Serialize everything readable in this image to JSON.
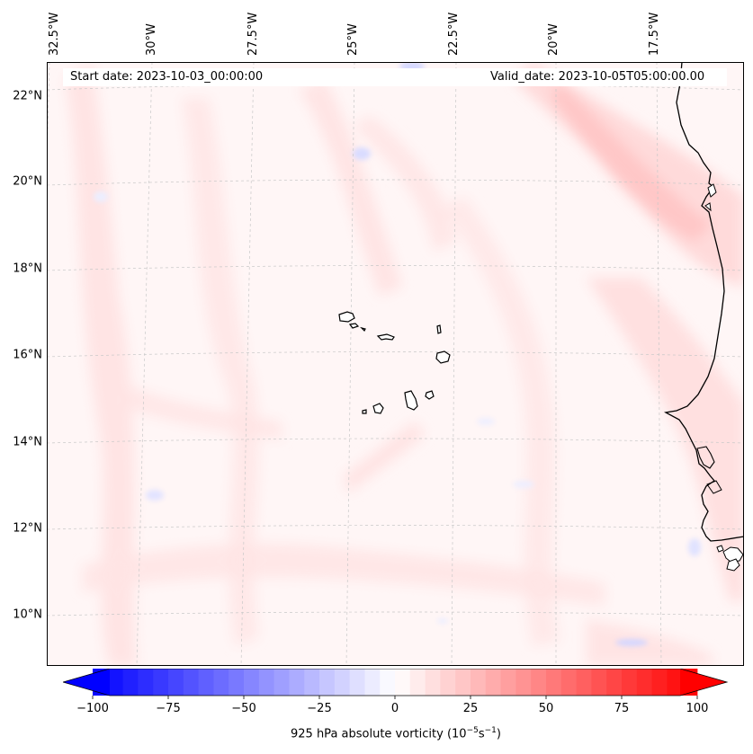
{
  "map": {
    "start_date": "Start date: 2023-10-03_00:00:00",
    "valid_date": "Valid_date: 2023-10-05T05:00:00.00",
    "lon_labels": [
      "32.5°W",
      "30°W",
      "27.5°W",
      "25°W",
      "22.5°W",
      "20°W",
      "17.5°W"
    ],
    "lat_labels": [
      "22°N",
      "20°N",
      "18°N",
      "16°N",
      "14°N",
      "12°N",
      "10°N"
    ],
    "colors": {
      "land_coast": "#000000",
      "gridline": "#c8c8c8",
      "positive": "#ff0000",
      "negative": "#0000ff"
    }
  },
  "colorbar": {
    "label_prefix": "925 hPa absolute vorticity (10",
    "label_exp1": "−5",
    "label_mid": "s",
    "label_exp2": "−1",
    "label_suffix": ")",
    "ticks": [
      "−100",
      "−75",
      "−50",
      "−25",
      "0",
      "25",
      "50",
      "75",
      "100"
    ],
    "range": [
      -100,
      100
    ]
  }
}
